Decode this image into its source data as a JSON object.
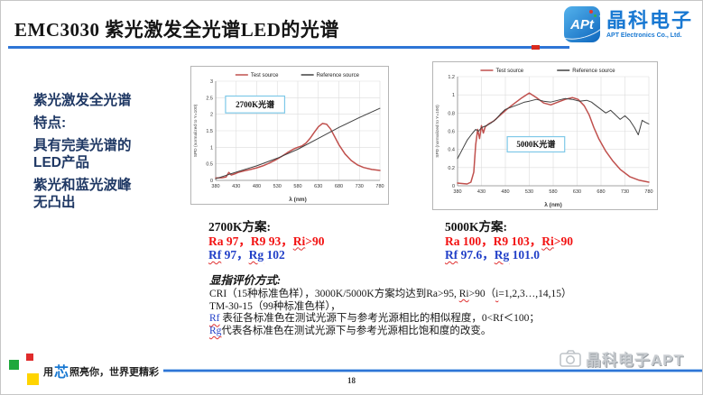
{
  "slide": {
    "title": "EMC3030  紫光激发全光谱LED的光谱",
    "page_number": "18"
  },
  "logo": {
    "badge": "APt",
    "company_cn": "晶科电子",
    "company_en": "APT Electronics Co., Ltd."
  },
  "sidebar": {
    "lines": [
      "紫光激发全光谱",
      "特点:",
      "具有完美光谱的",
      "LED产品",
      "紫光和蓝光波峰",
      "无凸出"
    ]
  },
  "schemes": {
    "k2700": {
      "title": "2700K方案:",
      "line1": [
        {
          "t": "Ra 97，R9 93，",
          "c": "red"
        },
        {
          "t": "Ri",
          "c": "red wavy"
        },
        {
          "t": ">90",
          "c": "red"
        }
      ],
      "line2": [
        {
          "t": "Rf",
          "c": "blue wavy"
        },
        {
          "t": " 97，",
          "c": "blue"
        },
        {
          "t": "Rg",
          "c": "blue wavy"
        },
        {
          "t": " 102",
          "c": "blue"
        }
      ]
    },
    "k5000": {
      "title": "5000K方案:",
      "line1": [
        {
          "t": "Ra 100，R9 103，",
          "c": "red"
        },
        {
          "t": "Ri",
          "c": "red wavy"
        },
        {
          "t": ">90",
          "c": "red"
        }
      ],
      "line2": [
        {
          "t": "Rf",
          "c": "blue wavy"
        },
        {
          "t": " 97.6，",
          "c": "blue"
        },
        {
          "t": "Rg",
          "c": "blue wavy"
        },
        {
          "t": " 101.0",
          "c": "blue"
        }
      ]
    }
  },
  "evaluation": {
    "title": "显指评价方式:",
    "lines": [
      [
        {
          "t": "CRI（15种标准色样），3000K/5000K方案均达到Ra>95, ",
          "c": ""
        },
        {
          "t": "Ri",
          "c": "wavy"
        },
        {
          "t": ">90（",
          "c": ""
        },
        {
          "t": "i",
          "c": "wavy"
        },
        {
          "t": "=1,2,3…,14,15）",
          "c": ""
        }
      ],
      [
        {
          "t": "TM-30-15（99种标准色样），",
          "c": ""
        }
      ],
      [
        {
          "t": "Rf",
          "c": "blue wavy"
        },
        {
          "t": " 表征各标准色在测试光源下与参考光源相比的相似程度，0<Rf＜100；",
          "c": ""
        }
      ],
      [
        {
          "t": "Rg",
          "c": "blue wavy"
        },
        {
          "t": "代表各标准色在测试光源下与参考光源相比饱和度的改变。",
          "c": ""
        }
      ]
    ]
  },
  "footer": {
    "slogan_prefix": "用",
    "slogan_core": "芯",
    "slogan_suffix": "照亮你，世界更精彩",
    "watermark": "晶科电子APT"
  },
  "colors": {
    "accent_blue": "#2E75D6",
    "navy": "#1F3864",
    "metric_red": "#F21212",
    "metric_blue": "#2240C8",
    "logo_blue": "#1878D2",
    "test_red": "#C0504D",
    "ref_black": "#404040"
  },
  "chart_data": [
    {
      "type": "line",
      "box_label": "2700K光谱",
      "xlabel": "λ (nm)",
      "ylabel": "SPD (normalized to Y=100)",
      "xlim": [
        380,
        780
      ],
      "ylim": [
        0,
        3
      ],
      "xticks": [
        380,
        430,
        480,
        530,
        580,
        630,
        680,
        730,
        780
      ],
      "yticks": [
        0,
        0.5,
        1,
        1.5,
        2,
        2.5,
        3
      ],
      "legend_position": "top",
      "grid": true,
      "box": {
        "fx": 0.06,
        "fy": 0.15,
        "fw": 0.36,
        "fh": 0.17
      },
      "series": [
        {
          "name": "Test source",
          "color": "#C0504D",
          "x": [
            380,
            395,
            405,
            412,
            418,
            425,
            435,
            450,
            465,
            480,
            495,
            510,
            525,
            540,
            555,
            570,
            580,
            590,
            600,
            610,
            620,
            630,
            640,
            650,
            660,
            670,
            680,
            695,
            710,
            725,
            740,
            760,
            780
          ],
          "y": [
            0.07,
            0.08,
            0.1,
            0.24,
            0.16,
            0.19,
            0.24,
            0.29,
            0.33,
            0.38,
            0.44,
            0.52,
            0.61,
            0.72,
            0.84,
            0.95,
            1.0,
            1.04,
            1.13,
            1.27,
            1.45,
            1.62,
            1.72,
            1.7,
            1.55,
            1.32,
            1.08,
            0.8,
            0.6,
            0.47,
            0.39,
            0.33,
            0.3
          ]
        },
        {
          "name": "Reference source",
          "color": "#404040",
          "x": [
            380,
            430,
            480,
            530,
            580,
            630,
            680,
            730,
            780
          ],
          "y": [
            0.05,
            0.25,
            0.44,
            0.67,
            0.94,
            1.27,
            1.6,
            1.9,
            2.18
          ]
        }
      ]
    },
    {
      "type": "line",
      "box_label": "5000K光谱",
      "xlabel": "λ (nm)",
      "ylabel": "SPD (normalized to Y=100)",
      "xlim": [
        380,
        780
      ],
      "ylim": [
        0,
        1.2
      ],
      "xticks": [
        380,
        430,
        480,
        530,
        580,
        630,
        680,
        730,
        780
      ],
      "yticks": [
        0,
        0.2,
        0.4,
        0.6,
        0.8,
        1,
        1.2
      ],
      "legend_position": "top",
      "grid": true,
      "box": {
        "fx": 0.26,
        "fy": 0.55,
        "fw": 0.3,
        "fh": 0.14
      },
      "series": [
        {
          "name": "Test source",
          "color": "#C0504D",
          "x": [
            380,
            400,
            408,
            414,
            418,
            422,
            426,
            430,
            434,
            438,
            445,
            455,
            470,
            485,
            500,
            515,
            530,
            545,
            560,
            575,
            590,
            605,
            620,
            632,
            645,
            655,
            665,
            675,
            690,
            705,
            720,
            740,
            760,
            780
          ],
          "y": [
            0.03,
            0.02,
            0.04,
            0.15,
            0.45,
            0.62,
            0.52,
            0.66,
            0.58,
            0.65,
            0.68,
            0.71,
            0.78,
            0.85,
            0.91,
            0.97,
            1.02,
            0.97,
            0.91,
            0.89,
            0.92,
            0.95,
            0.97,
            0.95,
            0.88,
            0.78,
            0.64,
            0.52,
            0.38,
            0.27,
            0.18,
            0.1,
            0.06,
            0.04
          ]
        },
        {
          "name": "Reference source",
          "color": "#404040",
          "x": [
            380,
            390,
            400,
            410,
            418,
            424,
            430,
            440,
            450,
            460,
            470,
            480,
            490,
            500,
            510,
            520,
            530,
            545,
            560,
            575,
            590,
            605,
            620,
            635,
            650,
            660,
            670,
            680,
            690,
            700,
            710,
            720,
            730,
            740,
            750,
            758,
            766,
            772,
            780
          ],
          "y": [
            0.3,
            0.4,
            0.5,
            0.57,
            0.62,
            0.6,
            0.64,
            0.66,
            0.69,
            0.73,
            0.79,
            0.84,
            0.86,
            0.88,
            0.9,
            0.92,
            0.93,
            0.95,
            0.93,
            0.92,
            0.94,
            0.96,
            0.95,
            0.93,
            0.94,
            0.92,
            0.88,
            0.84,
            0.8,
            0.83,
            0.78,
            0.73,
            0.77,
            0.72,
            0.64,
            0.56,
            0.72,
            0.7,
            0.68
          ]
        }
      ]
    }
  ]
}
